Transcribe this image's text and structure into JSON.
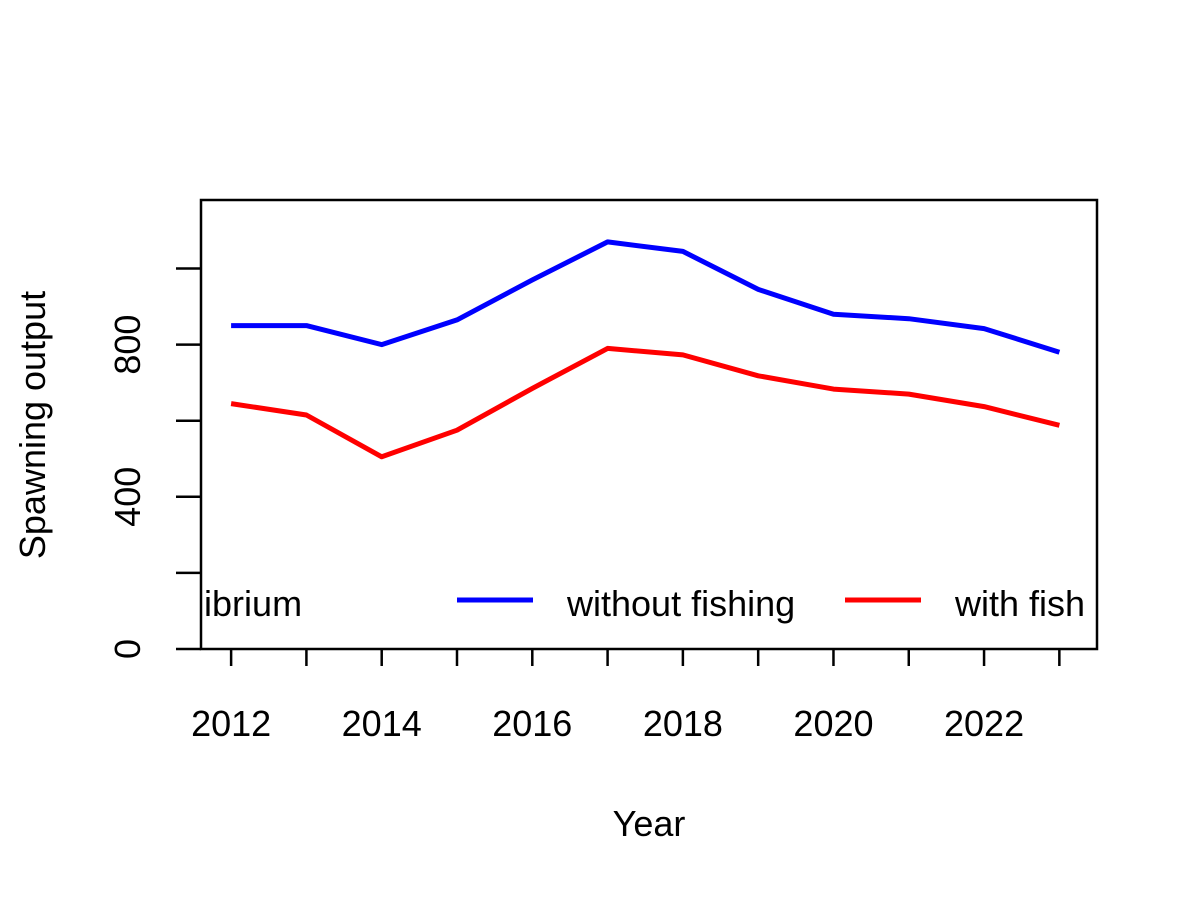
{
  "chart_data": {
    "type": "line",
    "title": "",
    "xlabel": "Year",
    "ylabel": "Spawning output",
    "xlim": [
      2011.6,
      2023.5
    ],
    "ylim": [
      0,
      1180
    ],
    "x_ticks": [
      2012,
      2013,
      2014,
      2015,
      2016,
      2017,
      2018,
      2019,
      2020,
      2021,
      2022,
      2023
    ],
    "x_tick_labels": [
      "2012",
      "",
      "2014",
      "",
      "2016",
      "",
      "2018",
      "",
      "2020",
      "",
      "2022",
      ""
    ],
    "y_ticks": [
      0,
      200,
      400,
      600,
      800,
      1000
    ],
    "y_tick_labels": [
      "0",
      "",
      "400",
      "",
      "800",
      ""
    ],
    "x": [
      2012,
      2013,
      2014,
      2015,
      2016,
      2017,
      2018,
      2019,
      2020,
      2021,
      2022,
      2023
    ],
    "series": [
      {
        "name": "without fishing",
        "color": "#0000FF",
        "values": [
          850,
          850,
          800,
          865,
          970,
          1070,
          1045,
          945,
          880,
          868,
          842,
          780
        ]
      },
      {
        "name": "with fish",
        "color": "#FF0000",
        "values": [
          645,
          615,
          505,
          575,
          685,
          790,
          773,
          718,
          683,
          670,
          637,
          588
        ]
      }
    ],
    "legend": {
      "placement": "bottom",
      "entries": [
        {
          "label": "quilibrium",
          "color": ""
        },
        {
          "label": "without fishing",
          "color": "#0000FF"
        },
        {
          "label": "with fish",
          "color": "#FF0000"
        }
      ]
    },
    "grid": false
  }
}
